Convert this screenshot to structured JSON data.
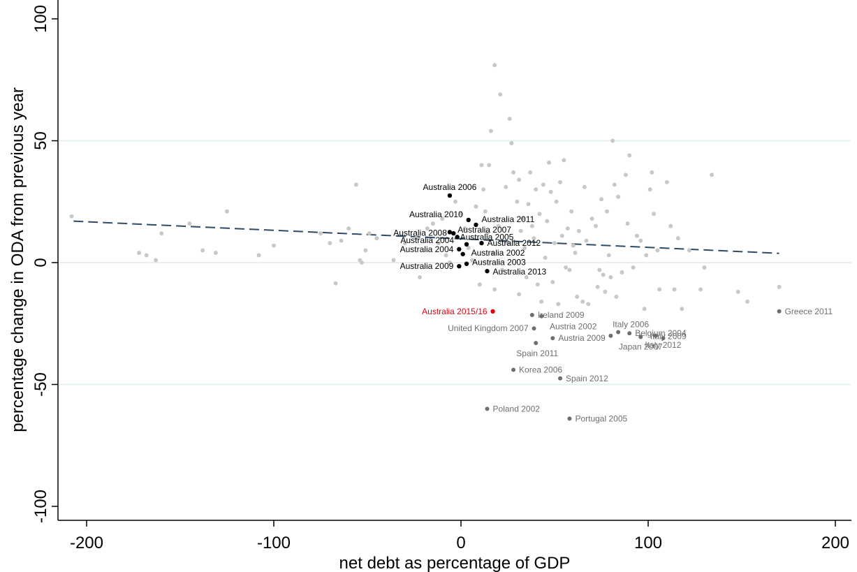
{
  "chart_data": {
    "type": "scatter",
    "title": "",
    "xlabel": "net debt as percentage of GDP",
    "ylabel": "percentage change in ODA from previous year",
    "xlim": [
      -210,
      210
    ],
    "ylim": [
      -105,
      105
    ],
    "xticks": [
      -200,
      -100,
      0,
      100,
      200
    ],
    "yticks": [
      100,
      50,
      0,
      -50,
      -100
    ],
    "grid": "horizontal",
    "trendline": {
      "style": "dashed",
      "color": "#2e4a66",
      "x": [
        -207,
        170
      ],
      "y": [
        17,
        3.8
      ]
    },
    "colors": {
      "background": "#4a4a4a",
      "australia": "#000000",
      "highlight": "#e8000b",
      "labeled": "#6e6e6e",
      "gridline": "#e6efef"
    },
    "highlight": [
      {
        "x": 17,
        "y": -20,
        "label": "Australia 2015/16"
      }
    ],
    "australia": [
      {
        "x": -6,
        "y": 27.5,
        "label": "Australia 2006"
      },
      {
        "x": 4,
        "y": 17.5,
        "label": "Australia 2010"
      },
      {
        "x": 8,
        "y": 15.5,
        "label": "Australia 2011"
      },
      {
        "x": -6,
        "y": 12.5,
        "label": "Australia 2008"
      },
      {
        "x": -4,
        "y": 12,
        "label": "Australia 2007"
      },
      {
        "x": -2,
        "y": 10.5,
        "label": "Australia 2005"
      },
      {
        "x": 11,
        "y": 8,
        "label": "Australia 2012"
      },
      {
        "x": 3,
        "y": 7.5,
        "label": "Australia 2004"
      },
      {
        "x": -1,
        "y": 5.5,
        "label": "Australia 2004"
      },
      {
        "x": 1,
        "y": 3.5,
        "label": "Australia 2002"
      },
      {
        "x": -1,
        "y": -1.5,
        "label": "Australia 2009"
      },
      {
        "x": 3,
        "y": -0.5,
        "label": "Australia 2003"
      },
      {
        "x": 14,
        "y": -3.5,
        "label": "Australia 2013"
      }
    ],
    "labeled": [
      {
        "x": 170,
        "y": -20,
        "label": "Greece 2011"
      },
      {
        "x": 38,
        "y": -21.5,
        "label": "Ireland 2009"
      },
      {
        "x": 43,
        "y": -22,
        "label": ""
      },
      {
        "x": 39,
        "y": -27,
        "label": "United Kingdom 2007"
      },
      {
        "x": 49,
        "y": -31,
        "label": "Austria 2009"
      },
      {
        "x": 40,
        "y": -33,
        "label": "Spain 2011"
      },
      {
        "x": 80,
        "y": -30,
        "label": "Austria 2002"
      },
      {
        "x": 84,
        "y": -28.5,
        "label": "Italy 2006"
      },
      {
        "x": 90,
        "y": -29,
        "label": "Belgium 2004"
      },
      {
        "x": 104,
        "y": -30,
        "label": "Italy 2009"
      },
      {
        "x": 96,
        "y": -30.5,
        "label": "Japan 2007"
      },
      {
        "x": 108,
        "y": -31,
        "label": "Italy 2012"
      },
      {
        "x": 28,
        "y": -44,
        "label": "Korea 2006"
      },
      {
        "x": 53,
        "y": -47.5,
        "label": "Spain 2012"
      },
      {
        "x": 14,
        "y": -60,
        "label": "Poland 2002"
      },
      {
        "x": 58,
        "y": -64,
        "label": "Portugal 2005"
      }
    ],
    "background": [
      {
        "x": -208,
        "y": 19
      },
      {
        "x": -172,
        "y": 4
      },
      {
        "x": -168,
        "y": 3
      },
      {
        "x": -163,
        "y": 1
      },
      {
        "x": -160,
        "y": 12
      },
      {
        "x": -145,
        "y": 16
      },
      {
        "x": -138,
        "y": 5
      },
      {
        "x": -131,
        "y": 4
      },
      {
        "x": -125,
        "y": 21
      },
      {
        "x": -108,
        "y": 3
      },
      {
        "x": -100,
        "y": 7
      },
      {
        "x": -75,
        "y": 12
      },
      {
        "x": -70,
        "y": 8
      },
      {
        "x": -67,
        "y": -8.5
      },
      {
        "x": -64,
        "y": 9
      },
      {
        "x": -60,
        "y": 14
      },
      {
        "x": -56,
        "y": 32
      },
      {
        "x": -54,
        "y": 1
      },
      {
        "x": -53,
        "y": 0
      },
      {
        "x": -51,
        "y": 5
      },
      {
        "x": -49,
        "y": 12
      },
      {
        "x": -45,
        "y": 10
      },
      {
        "x": -36,
        "y": 1
      },
      {
        "x": -30,
        "y": 8
      },
      {
        "x": -24,
        "y": 10
      },
      {
        "x": -22,
        "y": -6
      },
      {
        "x": -18,
        "y": 14
      },
      {
        "x": -15,
        "y": 16
      },
      {
        "x": -12,
        "y": 8
      },
      {
        "x": -10,
        "y": 18
      },
      {
        "x": -8,
        "y": 3
      },
      {
        "x": -6,
        "y": 0
      },
      {
        "x": -3,
        "y": 25
      },
      {
        "x": 0,
        "y": 20
      },
      {
        "x": 2,
        "y": 14
      },
      {
        "x": 4,
        "y": 6
      },
      {
        "x": 6,
        "y": 1
      },
      {
        "x": 8,
        "y": 23
      },
      {
        "x": 10,
        "y": -9
      },
      {
        "x": 11,
        "y": 40
      },
      {
        "x": 12,
        "y": 30
      },
      {
        "x": 13,
        "y": 21
      },
      {
        "x": 14,
        "y": 12
      },
      {
        "x": 15,
        "y": 40
      },
      {
        "x": 16,
        "y": 54
      },
      {
        "x": 17,
        "y": 4
      },
      {
        "x": 18,
        "y": -11
      },
      {
        "x": 18,
        "y": 81
      },
      {
        "x": 20,
        "y": 15
      },
      {
        "x": 21,
        "y": 69
      },
      {
        "x": 22,
        "y": -3
      },
      {
        "x": 24,
        "y": 31
      },
      {
        "x": 25,
        "y": 8
      },
      {
        "x": 26,
        "y": 59
      },
      {
        "x": 27,
        "y": 49
      },
      {
        "x": 28,
        "y": 37
      },
      {
        "x": 30,
        "y": 25
      },
      {
        "x": 31,
        "y": -13
      },
      {
        "x": 31,
        "y": 34
      },
      {
        "x": 32,
        "y": 13
      },
      {
        "x": 33,
        "y": 18
      },
      {
        "x": 34,
        "y": 6
      },
      {
        "x": 35,
        "y": -6
      },
      {
        "x": 36,
        "y": 24
      },
      {
        "x": 37,
        "y": 37
      },
      {
        "x": 38,
        "y": 15
      },
      {
        "x": 39,
        "y": 10
      },
      {
        "x": 40,
        "y": 30
      },
      {
        "x": 41,
        "y": -9
      },
      {
        "x": 42,
        "y": 20
      },
      {
        "x": 43,
        "y": -16
      },
      {
        "x": 44,
        "y": 32
      },
      {
        "x": 45,
        "y": 2
      },
      {
        "x": 46,
        "y": 17
      },
      {
        "x": 47,
        "y": 41
      },
      {
        "x": 48,
        "y": 29
      },
      {
        "x": 49,
        "y": -8
      },
      {
        "x": 50,
        "y": 8
      },
      {
        "x": 51,
        "y": 25
      },
      {
        "x": 52,
        "y": -17
      },
      {
        "x": 53,
        "y": 33
      },
      {
        "x": 54,
        "y": 11
      },
      {
        "x": 55,
        "y": 42
      },
      {
        "x": 56,
        "y": -2
      },
      {
        "x": 57,
        "y": 14
      },
      {
        "x": 58,
        "y": -3
      },
      {
        "x": 59,
        "y": 21
      },
      {
        "x": 60,
        "y": 7
      },
      {
        "x": 61,
        "y": 4
      },
      {
        "x": 62,
        "y": -14
      },
      {
        "x": 63,
        "y": 13
      },
      {
        "x": 65,
        "y": -16
      },
      {
        "x": 66,
        "y": 31
      },
      {
        "x": 67,
        "y": 9
      },
      {
        "x": 68,
        "y": -17
      },
      {
        "x": 70,
        "y": 18
      },
      {
        "x": 72,
        "y": 15
      },
      {
        "x": 73,
        "y": -10
      },
      {
        "x": 74,
        "y": -3
      },
      {
        "x": 75,
        "y": 26
      },
      {
        "x": 76,
        "y": -5
      },
      {
        "x": 77,
        "y": -12
      },
      {
        "x": 78,
        "y": 21
      },
      {
        "x": 79,
        "y": 3
      },
      {
        "x": 80,
        "y": -6
      },
      {
        "x": 81,
        "y": 50
      },
      {
        "x": 82,
        "y": 32
      },
      {
        "x": 83,
        "y": -14
      },
      {
        "x": 84,
        "y": 27
      },
      {
        "x": 86,
        "y": -4
      },
      {
        "x": 88,
        "y": 36
      },
      {
        "x": 89,
        "y": 16
      },
      {
        "x": 90,
        "y": 44
      },
      {
        "x": 92,
        "y": -2
      },
      {
        "x": 94,
        "y": 11
      },
      {
        "x": 96,
        "y": 9
      },
      {
        "x": 98,
        "y": -19
      },
      {
        "x": 99,
        "y": 3
      },
      {
        "x": 101,
        "y": 30
      },
      {
        "x": 102,
        "y": 37
      },
      {
        "x": 103,
        "y": 20
      },
      {
        "x": 105,
        "y": 5
      },
      {
        "x": 106,
        "y": -11
      },
      {
        "x": 110,
        "y": 33
      },
      {
        "x": 112,
        "y": 15
      },
      {
        "x": 114,
        "y": -11
      },
      {
        "x": 116,
        "y": 10
      },
      {
        "x": 118,
        "y": -19
      },
      {
        "x": 122,
        "y": 5
      },
      {
        "x": 128,
        "y": -11
      },
      {
        "x": 130,
        "y": -2
      },
      {
        "x": 134,
        "y": 36
      },
      {
        "x": 148,
        "y": -12
      },
      {
        "x": 153,
        "y": -16
      },
      {
        "x": 170,
        "y": -10
      }
    ]
  }
}
